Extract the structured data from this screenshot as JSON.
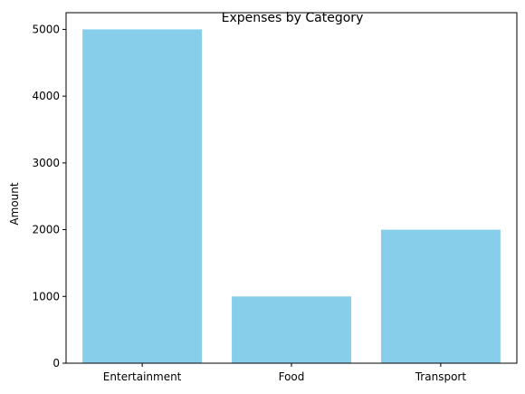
{
  "chart_data": {
    "type": "bar",
    "title": "Expenses by Category",
    "xlabel": "",
    "ylabel": "Amount",
    "categories": [
      "Entertainment",
      "Food",
      "Transport"
    ],
    "values": [
      5000,
      1000,
      2000
    ],
    "ylim": [
      0,
      5250
    ],
    "yticks": [
      0,
      1000,
      2000,
      3000,
      4000,
      5000
    ],
    "grid": false,
    "bar_color": "#87CEEB"
  }
}
